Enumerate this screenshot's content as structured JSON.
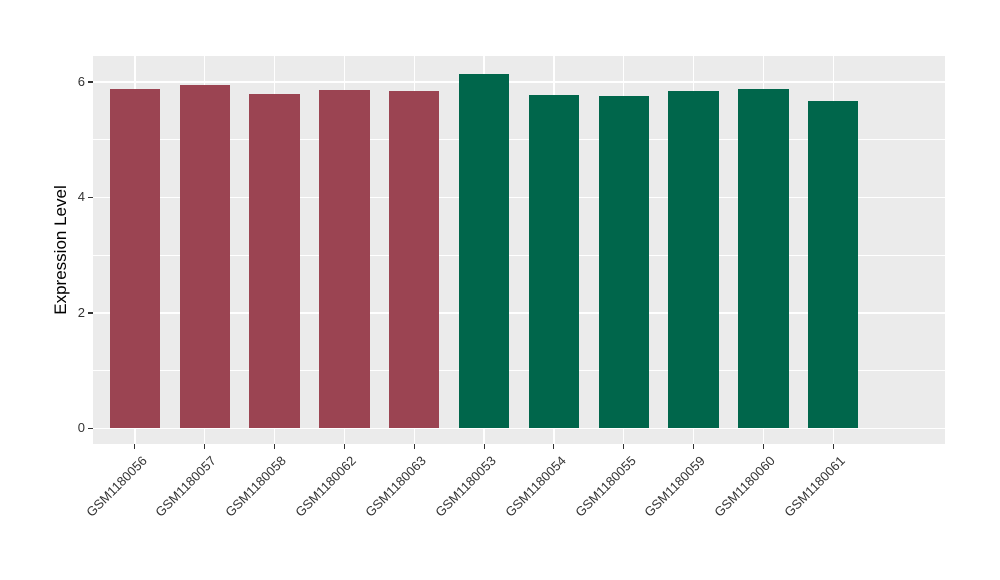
{
  "figure": {
    "background": "#FFFFFF",
    "panel_background": "#EBEBEB",
    "grid_color": "#FFFFFF",
    "axis_text_color": "#333333",
    "axis_title_color": "#000000"
  },
  "chart_data": {
    "type": "bar",
    "title": "",
    "xlabel": "",
    "ylabel": "Expression Level",
    "categories": [
      "GSM1180056",
      "GSM1180057",
      "GSM1180058",
      "GSM1180062",
      "GSM1180063",
      "GSM1180053",
      "GSM1180054",
      "GSM1180055",
      "GSM1180059",
      "GSM1180060",
      "GSM1180061"
    ],
    "values": [
      5.87,
      5.94,
      5.79,
      5.86,
      5.84,
      6.14,
      5.77,
      5.75,
      5.84,
      5.87,
      5.67
    ],
    "bar_colors": [
      "#9B4452",
      "#9B4452",
      "#9B4452",
      "#9B4452",
      "#9B4452",
      "#00664B",
      "#00664B",
      "#00664B",
      "#00664B",
      "#00664B",
      "#00664B"
    ],
    "group_colors": {
      "maroon_group": "#9B4452",
      "green_group": "#00664B"
    },
    "yticks": [
      0,
      2,
      4,
      6
    ],
    "yticks_minor": [
      1,
      3,
      5
    ],
    "ylim": [
      -0.27,
      6.45
    ],
    "bar_width_ratio": 0.72,
    "grid": true,
    "legend": "none"
  }
}
